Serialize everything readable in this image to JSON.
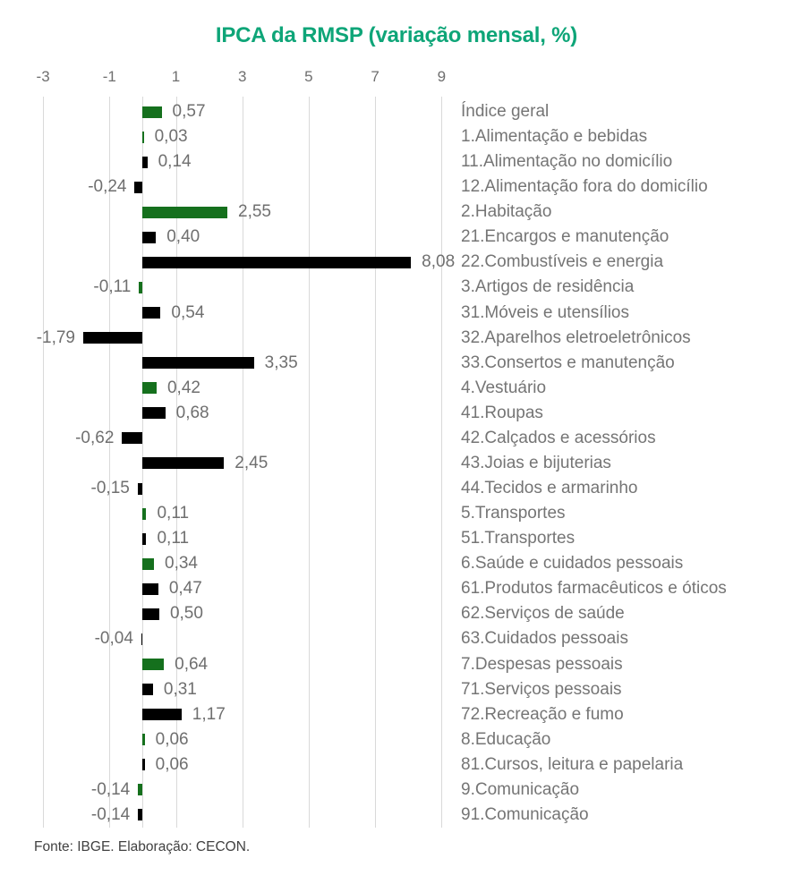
{
  "title": "IPCA da RMSP (variação mensal, %)",
  "footer": "Fonte: IBGE. Elaboração: CECON.",
  "colors": {
    "title": "#0ea578",
    "highlight_bar": "#15701d",
    "default_bar": "#000000",
    "value_text": "#6f6f6f",
    "category_text": "#757575",
    "gridline": "#d9d9d9",
    "footer_text": "#414141"
  },
  "chart_data": {
    "type": "bar",
    "orientation": "horizontal",
    "title": "IPCA da RMSP (variação mensal, %)",
    "xlabel": "",
    "ylabel": "",
    "xlim": [
      -3,
      9
    ],
    "x_ticks": [
      -3,
      -1,
      1,
      3,
      5,
      7,
      9
    ],
    "grid": true,
    "legend": "none",
    "highlight_meaning": "green bars = índice geral and main groups, black bars = subgroups",
    "items": [
      {
        "label": "Índice geral",
        "value": 0.57,
        "value_label": "0,57",
        "group": "main"
      },
      {
        "label": "1.Alimentação e bebidas",
        "value": 0.03,
        "value_label": "0,03",
        "group": "main"
      },
      {
        "label": "11.Alimentação no domicílio",
        "value": 0.14,
        "value_label": "0,14",
        "group": "sub"
      },
      {
        "label": "12.Alimentação fora do domicílio",
        "value": -0.24,
        "value_label": "-0,24",
        "group": "sub"
      },
      {
        "label": "2.Habitação",
        "value": 2.55,
        "value_label": "2,55",
        "group": "main"
      },
      {
        "label": "21.Encargos e manutenção",
        "value": 0.4,
        "value_label": "0,40",
        "group": "sub"
      },
      {
        "label": "22.Combustíveis e energia",
        "value": 8.08,
        "value_label": "8,08",
        "group": "sub"
      },
      {
        "label": "3.Artigos de residência",
        "value": -0.11,
        "value_label": "-0,11",
        "group": "main"
      },
      {
        "label": "31.Móveis e utensílios",
        "value": 0.54,
        "value_label": "0,54",
        "group": "sub"
      },
      {
        "label": "32.Aparelhos eletroeletrônicos",
        "value": -1.79,
        "value_label": "-1,79",
        "group": "sub"
      },
      {
        "label": "33.Consertos e manutenção",
        "value": 3.35,
        "value_label": "3,35",
        "group": "sub"
      },
      {
        "label": "4.Vestuário",
        "value": 0.42,
        "value_label": "0,42",
        "group": "main"
      },
      {
        "label": "41.Roupas",
        "value": 0.68,
        "value_label": "0,68",
        "group": "sub"
      },
      {
        "label": "42.Calçados e acessórios",
        "value": -0.62,
        "value_label": "-0,62",
        "group": "sub"
      },
      {
        "label": "43.Joias e bijuterias",
        "value": 2.45,
        "value_label": "2,45",
        "group": "sub"
      },
      {
        "label": "44.Tecidos e armarinho",
        "value": -0.15,
        "value_label": "-0,15",
        "group": "sub"
      },
      {
        "label": "5.Transportes",
        "value": 0.11,
        "value_label": "0,11",
        "group": "main"
      },
      {
        "label": "51.Transportes",
        "value": 0.11,
        "value_label": "0,11",
        "group": "sub"
      },
      {
        "label": "6.Saúde e cuidados pessoais",
        "value": 0.34,
        "value_label": "0,34",
        "group": "main"
      },
      {
        "label": "61.Produtos farmacêuticos e óticos",
        "value": 0.47,
        "value_label": "0,47",
        "group": "sub"
      },
      {
        "label": "62.Serviços de saúde",
        "value": 0.5,
        "value_label": "0,50",
        "group": "sub"
      },
      {
        "label": "63.Cuidados pessoais",
        "value": -0.04,
        "value_label": "-0,04",
        "group": "sub"
      },
      {
        "label": "7.Despesas pessoais",
        "value": 0.64,
        "value_label": "0,64",
        "group": "main"
      },
      {
        "label": "71.Serviços pessoais",
        "value": 0.31,
        "value_label": "0,31",
        "group": "sub"
      },
      {
        "label": "72.Recreação e fumo",
        "value": 1.17,
        "value_label": "1,17",
        "group": "sub"
      },
      {
        "label": "8.Educação",
        "value": 0.06,
        "value_label": "0,06",
        "group": "main"
      },
      {
        "label": "81.Cursos, leitura e papelaria",
        "value": 0.06,
        "value_label": "0,06",
        "group": "sub"
      },
      {
        "label": "9.Comunicação",
        "value": -0.14,
        "value_label": "-0,14",
        "group": "main"
      },
      {
        "label": "91.Comunicação",
        "value": -0.14,
        "value_label": "-0,14",
        "group": "sub"
      }
    ]
  }
}
